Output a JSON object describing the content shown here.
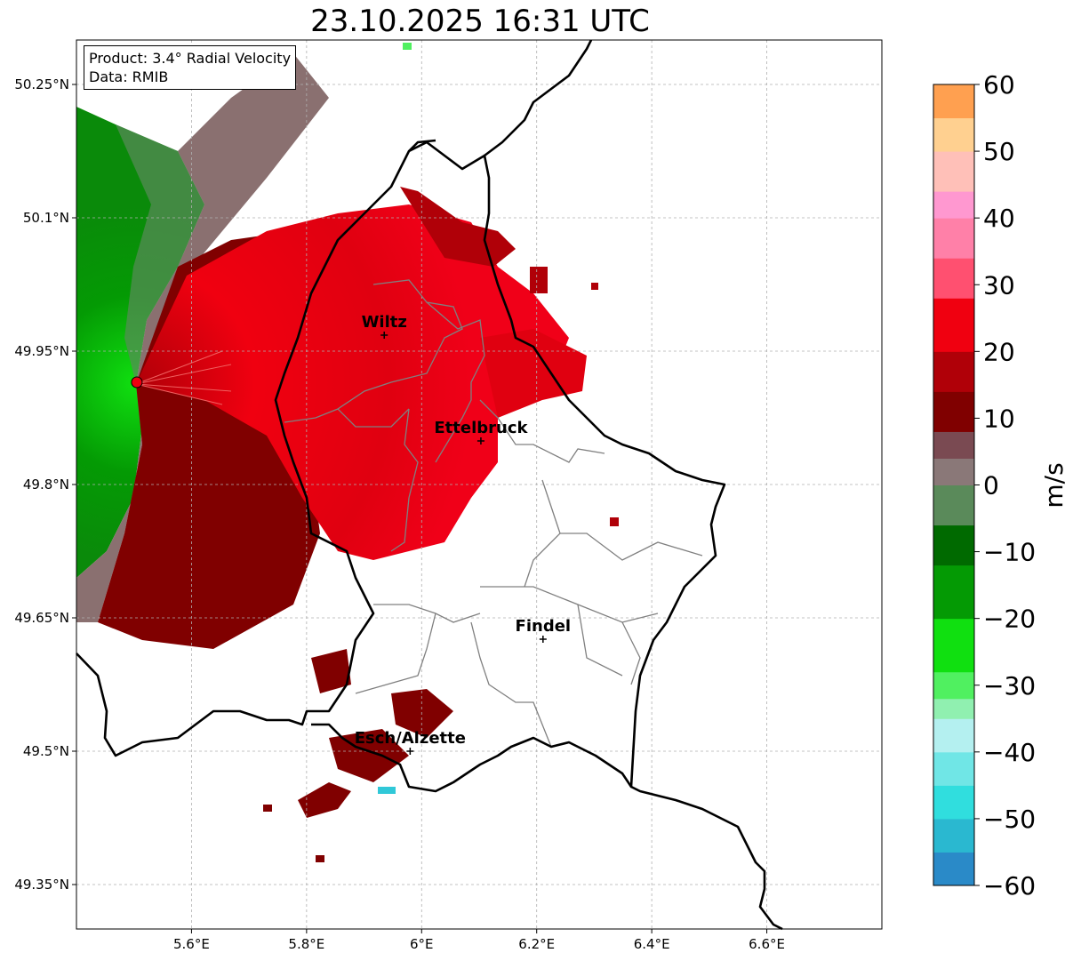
{
  "title": "23.10.2025 16:31 UTC",
  "info": {
    "product": "Product: 3.4° Radial Velocity",
    "data": "Data: RMIB"
  },
  "axes": {
    "lon_ticks": [
      {
        "value": 5.6,
        "label": "5.6°E"
      },
      {
        "value": 5.8,
        "label": "5.8°E"
      },
      {
        "value": 6.0,
        "label": "6°E"
      },
      {
        "value": 6.2,
        "label": "6.2°E"
      },
      {
        "value": 6.4,
        "label": "6.4°E"
      },
      {
        "value": 6.6,
        "label": "6.6°E"
      }
    ],
    "lat_ticks": [
      {
        "value": 50.25,
        "label": "50.25°N"
      },
      {
        "value": 50.1,
        "label": "50.1°N"
      },
      {
        "value": 49.95,
        "label": "49.95°N"
      },
      {
        "value": 49.8,
        "label": "49.8°N"
      },
      {
        "value": 49.65,
        "label": "49.65°N"
      },
      {
        "value": 49.5,
        "label": "49.5°N"
      },
      {
        "value": 49.35,
        "label": "49.35°N"
      }
    ],
    "lon_range": [
      5.4,
      6.8
    ],
    "lat_range": [
      49.3,
      50.3
    ],
    "grid": true
  },
  "colorbar": {
    "unit": "m/s",
    "range": [
      -60,
      60
    ],
    "ticks": [
      {
        "value": 60,
        "label": "60"
      },
      {
        "value": 50,
        "label": "50"
      },
      {
        "value": 40,
        "label": "40"
      },
      {
        "value": 30,
        "label": "30"
      },
      {
        "value": 20,
        "label": "20"
      },
      {
        "value": 10,
        "label": "10"
      },
      {
        "value": 0,
        "label": "0"
      },
      {
        "value": -10,
        "label": "−10"
      },
      {
        "value": -20,
        "label": "−20"
      },
      {
        "value": -30,
        "label": "−30"
      },
      {
        "value": -40,
        "label": "−40"
      },
      {
        "value": -50,
        "label": "−50"
      },
      {
        "value": -60,
        "label": "−60"
      }
    ],
    "colors": [
      {
        "from": -60,
        "to": -55,
        "color": "#2a8ac8"
      },
      {
        "from": -55,
        "to": -50,
        "color": "#2ab8d0"
      },
      {
        "from": -50,
        "to": -45,
        "color": "#30dede"
      },
      {
        "from": -45,
        "to": -40,
        "color": "#70e6e6"
      },
      {
        "from": -40,
        "to": -35,
        "color": "#b4f0f0"
      },
      {
        "from": -35,
        "to": -32,
        "color": "#90f0b0"
      },
      {
        "from": -32,
        "to": -28,
        "color": "#50f060"
      },
      {
        "from": -28,
        "to": -20,
        "color": "#10e010"
      },
      {
        "from": -20,
        "to": -12,
        "color": "#049a04"
      },
      {
        "from": -12,
        "to": -6,
        "color": "#006a00"
      },
      {
        "from": -6,
        "to": 0,
        "color": "#5a8a5a"
      },
      {
        "from": 0,
        "to": 4,
        "color": "#8a7878"
      },
      {
        "from": 4,
        "to": 8,
        "color": "#7a4a52"
      },
      {
        "from": 8,
        "to": 14,
        "color": "#800000"
      },
      {
        "from": 14,
        "to": 20,
        "color": "#b00008"
      },
      {
        "from": 20,
        "to": 28,
        "color": "#f00010"
      },
      {
        "from": 28,
        "to": 34,
        "color": "#ff5070"
      },
      {
        "from": 34,
        "to": 40,
        "color": "#ff80a8"
      },
      {
        "from": 40,
        "to": 44,
        "color": "#ff98d0"
      },
      {
        "from": 44,
        "to": 50,
        "color": "#ffc0b8"
      },
      {
        "from": 50,
        "to": 55,
        "color": "#ffd090"
      },
      {
        "from": 55,
        "to": 60,
        "color": "#ffa050"
      }
    ]
  },
  "radar_site": {
    "lon": 5.505,
    "lat": 49.915
  },
  "cities": [
    {
      "name": "Wiltz",
      "lon": 5.935,
      "lat": 49.968
    },
    {
      "name": "Ettelbruck",
      "lon": 6.103,
      "lat": 49.849
    },
    {
      "name": "Findel",
      "lon": 6.211,
      "lat": 49.626
    },
    {
      "name": "Esch/Alzette",
      "lon": 5.98,
      "lat": 49.5
    }
  ]
}
